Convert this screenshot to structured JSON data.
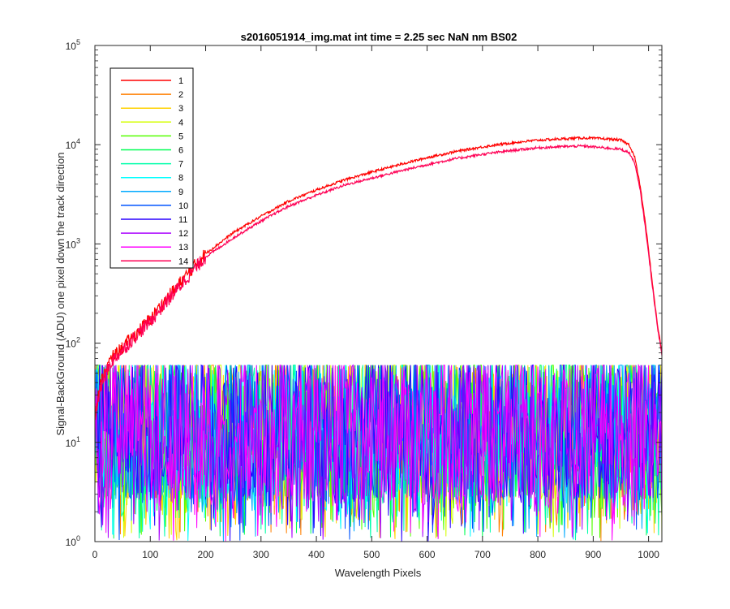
{
  "chart_data": {
    "type": "line",
    "title": "s2016051914_img.mat int time = 2.25 sec  NaN nm BS02",
    "xlabel": "Wavelength Pixels",
    "ylabel": "Signal-BackGround (ADU) one pixel down the track direction",
    "xlim": [
      0,
      1024
    ],
    "ylim": [
      1,
      100000
    ],
    "yscale": "log",
    "grid": false,
    "legend_position": "top-left",
    "x_ticks": [
      "0",
      "100",
      "200",
      "300",
      "400",
      "500",
      "600",
      "700",
      "800",
      "900",
      "1000"
    ],
    "y_ticks": [
      {
        "base": "10",
        "exp": "0"
      },
      {
        "base": "10",
        "exp": "1"
      },
      {
        "base": "10",
        "exp": "2"
      },
      {
        "base": "10",
        "exp": "3"
      },
      {
        "base": "10",
        "exp": "4"
      },
      {
        "base": "10",
        "exp": "5"
      }
    ],
    "signal_track_x": [
      0,
      10,
      20,
      30,
      50,
      75,
      100,
      125,
      150,
      175,
      200,
      250,
      300,
      350,
      400,
      450,
      500,
      550,
      600,
      650,
      700,
      750,
      800,
      850,
      880,
      900,
      930,
      950,
      965,
      975,
      985,
      995,
      1005,
      1015,
      1024
    ],
    "series": [
      {
        "name": "1",
        "color": "#ff0000",
        "kind": "signal",
        "values": [
          20,
          38,
          55,
          70,
          90,
          125,
          175,
          260,
          380,
          560,
          800,
          1300,
          1900,
          2700,
          3500,
          4400,
          5300,
          6300,
          7400,
          8500,
          9500,
          10400,
          11100,
          11500,
          11700,
          11600,
          11400,
          11100,
          10000,
          7500,
          3800,
          1500,
          500,
          170,
          80
        ]
      },
      {
        "name": "2",
        "color": "#ff7f00",
        "kind": "noise",
        "mean": 15
      },
      {
        "name": "3",
        "color": "#ffd200",
        "kind": "noise",
        "mean": 15
      },
      {
        "name": "4",
        "color": "#d4ff00",
        "kind": "noise",
        "mean": 15
      },
      {
        "name": "5",
        "color": "#55ff00",
        "kind": "noise",
        "mean": 15
      },
      {
        "name": "6",
        "color": "#00ff55",
        "kind": "noise",
        "mean": 15
      },
      {
        "name": "7",
        "color": "#00ffaa",
        "kind": "noise",
        "mean": 15
      },
      {
        "name": "8",
        "color": "#00ffff",
        "kind": "noise",
        "mean": 15
      },
      {
        "name": "9",
        "color": "#00aaff",
        "kind": "noise",
        "mean": 15
      },
      {
        "name": "10",
        "color": "#0055ff",
        "kind": "noise",
        "mean": 15
      },
      {
        "name": "11",
        "color": "#2a00ff",
        "kind": "noise",
        "mean": 15
      },
      {
        "name": "12",
        "color": "#aa00ff",
        "kind": "noise",
        "mean": 15
      },
      {
        "name": "13",
        "color": "#ff00ff",
        "kind": "noise",
        "mean": 15
      },
      {
        "name": "14",
        "color": "#ff0055",
        "kind": "signal",
        "values": [
          18,
          35,
          50,
          65,
          85,
          120,
          165,
          245,
          355,
          520,
          740,
          1150,
          1700,
          2400,
          3100,
          3900,
          4600,
          5400,
          6300,
          7200,
          8000,
          8700,
          9300,
          9600,
          9700,
          9500,
          9200,
          9000,
          8300,
          6500,
          3400,
          1350,
          460,
          160,
          75
        ]
      }
    ]
  }
}
